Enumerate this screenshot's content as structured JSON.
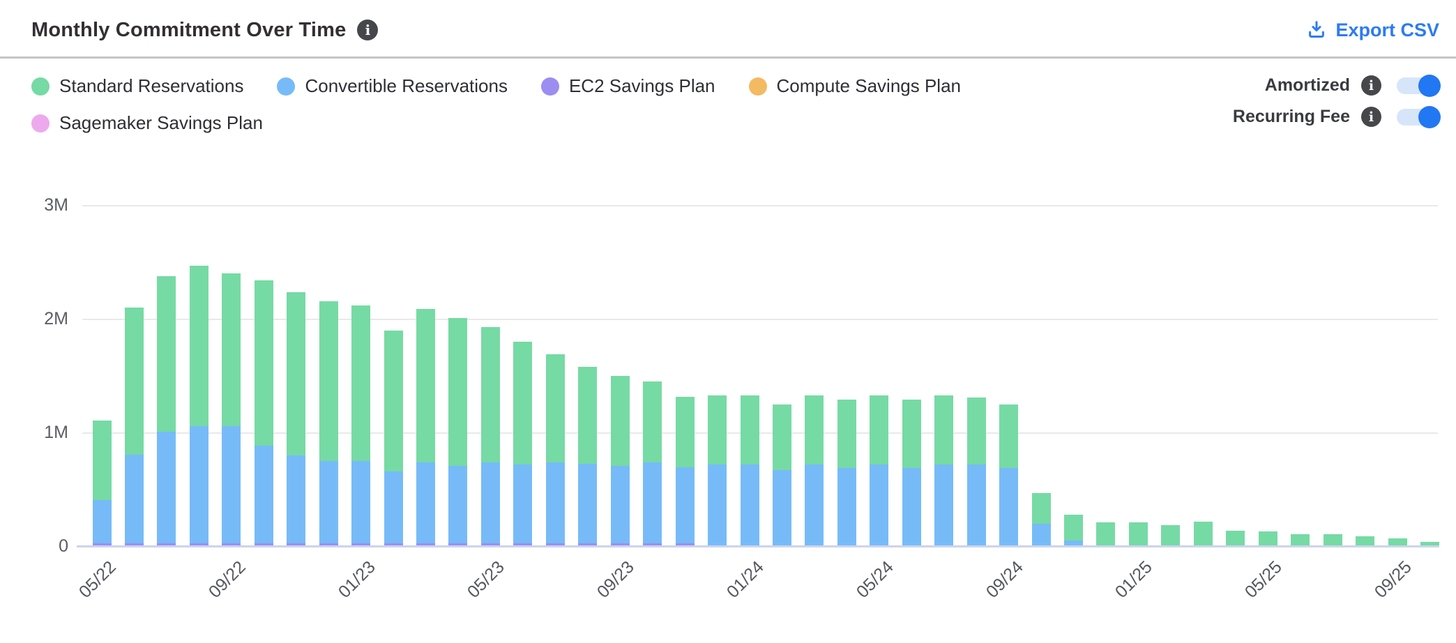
{
  "header": {
    "title": "Monthly Commitment Over Time",
    "export_label": "Export CSV",
    "icons": {
      "title_info": "info-circle-icon",
      "export": "download-icon"
    }
  },
  "legend": {
    "items": [
      {
        "label": "Standard Reservations",
        "color": "#76daa4"
      },
      {
        "label": "Convertible Reservations",
        "color": "#76bbf8"
      },
      {
        "label": "EC2 Savings Plan",
        "color": "#9b8df2"
      },
      {
        "label": "Compute Savings Plan",
        "color": "#f4ba61"
      },
      {
        "label": "Sagemaker Savings Plan",
        "color": "#eda9ed"
      }
    ]
  },
  "toggles": [
    {
      "label": "Amortized",
      "state": "on",
      "info_icon": "info-circle-icon"
    },
    {
      "label": "Recurring Fee",
      "state": "on",
      "info_icon": "info-circle-icon"
    }
  ],
  "chart_data": {
    "type": "bar",
    "stacked": true,
    "title": "Monthly Commitment Over Time",
    "x": [
      "05/22",
      "06/22",
      "07/22",
      "08/22",
      "09/22",
      "10/22",
      "11/22",
      "12/22",
      "01/23",
      "02/23",
      "03/23",
      "04/23",
      "05/23",
      "06/23",
      "07/23",
      "08/23",
      "09/23",
      "10/23",
      "11/23",
      "12/23",
      "01/24",
      "02/24",
      "03/24",
      "04/24",
      "05/24",
      "06/24",
      "07/24",
      "08/24",
      "09/24",
      "10/24",
      "11/24",
      "12/24",
      "01/25",
      "02/25",
      "03/25",
      "04/25",
      "05/25",
      "06/25",
      "07/25",
      "08/25",
      "09/25",
      "10/25"
    ],
    "x_tick_every": 4,
    "y_ticks": [
      "0",
      "1M",
      "2M",
      "3M"
    ],
    "ylim_millions": [
      0,
      3
    ],
    "values_unit": "millions",
    "legend_position": "top-left",
    "grid": "horizontal",
    "series": [
      {
        "name": "EC2 Savings Plan",
        "color": "#9b8df2",
        "values": [
          0.02,
          0.02,
          0.02,
          0.02,
          0.02,
          0.02,
          0.02,
          0.02,
          0.02,
          0.02,
          0.02,
          0.02,
          0.02,
          0.02,
          0.02,
          0.02,
          0.02,
          0.02,
          0.02,
          0,
          0,
          0,
          0,
          0,
          0,
          0,
          0,
          0,
          0,
          0,
          0,
          0,
          0,
          0,
          0,
          0,
          0,
          0,
          0,
          0,
          0,
          0
        ]
      },
      {
        "name": "Convertible Reservations",
        "color": "#76bbf8",
        "values": [
          0.38,
          0.78,
          0.98,
          1.03,
          1.03,
          0.86,
          0.77,
          0.72,
          0.72,
          0.63,
          0.71,
          0.68,
          0.71,
          0.69,
          0.71,
          0.7,
          0.68,
          0.71,
          0.67,
          0.71,
          0.71,
          0.66,
          0.71,
          0.68,
          0.71,
          0.68,
          0.71,
          0.71,
          0.68,
          0.19,
          0.04,
          0,
          0,
          0,
          0,
          0,
          0,
          0,
          0,
          0,
          0,
          0
        ]
      },
      {
        "name": "Standard Reservations",
        "color": "#76daa4",
        "values": [
          0.7,
          1.29,
          1.37,
          1.41,
          1.34,
          1.45,
          1.44,
          1.41,
          1.37,
          1.24,
          1.35,
          1.3,
          1.19,
          1.08,
          0.95,
          0.85,
          0.79,
          0.71,
          0.62,
          0.61,
          0.61,
          0.58,
          0.61,
          0.6,
          0.61,
          0.6,
          0.61,
          0.59,
          0.56,
          0.27,
          0.23,
          0.2,
          0.2,
          0.18,
          0.21,
          0.13,
          0.12,
          0.1,
          0.1,
          0.08,
          0.06,
          0.03
        ]
      },
      {
        "name": "Compute Savings Plan",
        "color": "#f4ba61",
        "values": [
          0,
          0,
          0,
          0,
          0,
          0,
          0,
          0,
          0,
          0,
          0,
          0,
          0,
          0,
          0,
          0,
          0,
          0,
          0,
          0,
          0,
          0,
          0,
          0,
          0,
          0,
          0,
          0,
          0,
          0,
          0,
          0,
          0,
          0,
          0,
          0,
          0,
          0,
          0,
          0,
          0,
          0
        ]
      },
      {
        "name": "Sagemaker Savings Plan",
        "color": "#eda9ed",
        "values": [
          0,
          0,
          0,
          0,
          0,
          0,
          0,
          0,
          0,
          0,
          0,
          0,
          0,
          0,
          0,
          0,
          0,
          0,
          0,
          0,
          0,
          0,
          0,
          0,
          0,
          0,
          0,
          0,
          0,
          0,
          0,
          0,
          0,
          0,
          0,
          0,
          0,
          0,
          0,
          0,
          0,
          0
        ]
      }
    ]
  },
  "colors": {
    "accent_blue": "#2b7cf3",
    "toggle_track": "#d7e5fa",
    "toggle_knob": "#2277f2",
    "grid": "#e9e9eb",
    "baseline": "#ccd4ec",
    "divider": "#c4c4c6",
    "text_dark": "#332f33",
    "text_gray": "#55575e"
  }
}
